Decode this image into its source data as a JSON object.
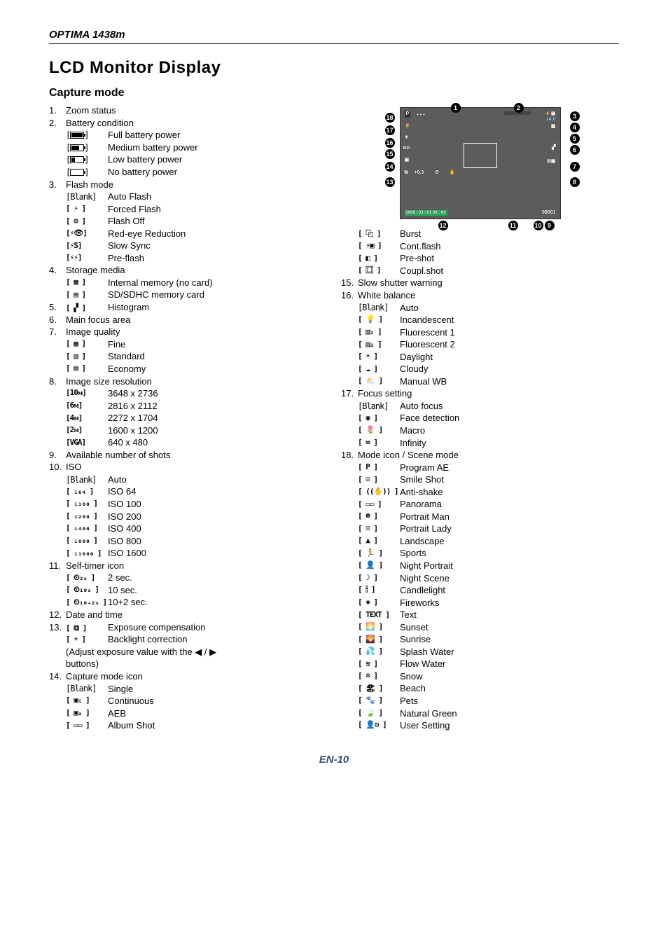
{
  "page": {
    "header": "OPTIMA 1438m",
    "title": "LCD Monitor Display",
    "subtitle": "Capture mode",
    "footer": "EN-10"
  },
  "colors": {
    "text": "#000000",
    "bg": "#ffffff",
    "lcd_bg": "#5c5c5c",
    "callout_bg": "#000000",
    "callout_fg": "#ffffff",
    "footer": "#3a4a7a"
  },
  "lcd_overlay": {
    "zoom_bar": "x4.0",
    "date": "2008 / 03 / 01  00 : 00",
    "counter": "00001",
    "ev": "+0.3",
    "iso": "800",
    "mode": "P"
  },
  "callouts": [
    "1",
    "2",
    "3",
    "4",
    "5",
    "6",
    "7",
    "8",
    "9",
    "10",
    "11",
    "12",
    "13",
    "14",
    "15",
    "16",
    "17",
    "18"
  ],
  "left": [
    {
      "n": "1.",
      "label": "Zoom status"
    },
    {
      "n": "2.",
      "label": "Battery condition",
      "subs": [
        {
          "icon": "batt-full",
          "text": "Full battery power"
        },
        {
          "icon": "batt-med",
          "text": "Medium battery power"
        },
        {
          "icon": "batt-low",
          "text": "Low battery power"
        },
        {
          "icon": "batt-none",
          "text": "No battery power"
        }
      ]
    },
    {
      "n": "3.",
      "label": "Flash  mode",
      "subs": [
        {
          "icon": "[Blank]",
          "plain": true,
          "text": "Auto Flash"
        },
        {
          "icon": "[ ⚡ ]",
          "text": "Forced Flash"
        },
        {
          "icon": "[ ⊘ ]",
          "text": "Flash Off"
        },
        {
          "icon": "[⚡👁]",
          "text": "Red-eye Reduction"
        },
        {
          "icon": "[⚡S]",
          "text": "Slow Sync"
        },
        {
          "icon": "[⚡⚡]",
          "text": "Pre-flash"
        }
      ]
    },
    {
      "n": "4.",
      "label": "Storage media",
      "subs": [
        {
          "icon": "[ ▦ ]",
          "text": "Internal memory (no card)"
        },
        {
          "icon": "[ ▤ ]",
          "text": "SD/SDHC memory card"
        }
      ]
    },
    {
      "n": "5.",
      "label_icon": "[ ▞ ]",
      "label": "Histogram"
    },
    {
      "n": "6.",
      "label": "Main focus area"
    },
    {
      "n": "7.",
      "label": "Image quality",
      "subs": [
        {
          "icon": "[ ▦ ]",
          "text": "Fine"
        },
        {
          "icon": "[ ▥ ]",
          "text": "Standard"
        },
        {
          "icon": "[ ▤ ]",
          "text": "Economy"
        }
      ]
    },
    {
      "n": "8.",
      "label": "Image size resolution",
      "subs": [
        {
          "icon": "[10ᴍ]",
          "text": "3648 x 2736"
        },
        {
          "icon": "[6ᴍ]",
          "text": "2816 x 2112"
        },
        {
          "icon": "[4ᴍ]",
          "text": "2272 x 1704"
        },
        {
          "icon": "[2ᴍ]",
          "text": "1600 x 1200"
        },
        {
          "icon": "[VGA]",
          "text": "640 x 480",
          "bold": true
        }
      ]
    },
    {
      "n": "9.",
      "label": "Available number of shots"
    },
    {
      "n": "10.",
      "label": "ISO",
      "subs": [
        {
          "icon": "[Blank]",
          "plain": true,
          "text": "Auto"
        },
        {
          "icon": "[ ᵢ₆₄ ]",
          "text": "ISO  64"
        },
        {
          "icon": "[ ᵢ₁₀₀ ]",
          "text": "ISO 100"
        },
        {
          "icon": "[ ᵢ₂₀₀ ]",
          "text": "ISO 200"
        },
        {
          "icon": "[ ᵢ₄₀₀ ]",
          "text": "ISO 400"
        },
        {
          "icon": "[ ᵢ₈₀₀ ]",
          "text": "ISO 800"
        },
        {
          "icon": "[ ᵢ₁₆₀₀ ]",
          "text": "ISO 1600"
        }
      ]
    },
    {
      "n": "11.",
      "label": "Self-timer icon",
      "subs": [
        {
          "icon": "[ ⏲₂ₛ ]",
          "text": "2 sec."
        },
        {
          "icon": "[ ⏲₁₀ₛ ]",
          "text": "10 sec."
        },
        {
          "icon": "[ ⏲₁₀₊₂ₛ ]",
          "text": "10+2 sec."
        }
      ]
    },
    {
      "n": "12.",
      "label": "Date and time"
    },
    {
      "n": "13.",
      "label_icon": "[ ⧉ ]",
      "label": "Exposure compensation",
      "subs": [
        {
          "icon": "[ ☀ ]",
          "text": "Backlight correction"
        }
      ],
      "note": "(Adjust exposure value with the    ◀ / ▶\nbuttons)"
    },
    {
      "n": "14.",
      "label": "Capture mode icon",
      "subs": [
        {
          "icon": "[Blank]",
          "plain": true,
          "text": "Single"
        },
        {
          "icon": "[ ▣ᵢ ]",
          "text": "Continuous"
        },
        {
          "icon": "[ ▣ₐ ]",
          "text": "AEB"
        },
        {
          "icon": "[ ▭▭ ]",
          "text": "Album Shot"
        }
      ]
    }
  ],
  "right_cont": [
    {
      "icon": "[ ⿻ ]",
      "text": "Burst"
    },
    {
      "icon": "[ ⚡▣ ]",
      "text": "Cont.flash"
    },
    {
      "icon": "[ ◧ ]",
      "text": "Pre-shot"
    },
    {
      "icon": "[ ⿴ ]",
      "text": "Coupl.shot"
    }
  ],
  "right": [
    {
      "n": "15.",
      "label": "Slow shutter warning"
    },
    {
      "n": "16.",
      "label": "White balance",
      "subs": [
        {
          "icon": "[Blank]",
          "plain": true,
          "text": "Auto"
        },
        {
          "icon": "[ 💡 ]",
          "text": "Incandescent"
        },
        {
          "icon": "[ ▥₁ ]",
          "text": "Fluorescent 1"
        },
        {
          "icon": "[ ▥₂ ]",
          "text": "Fluorescent 2"
        },
        {
          "icon": "[ ☀ ]",
          "text": "Daylight"
        },
        {
          "icon": "[ ☁ ]",
          "text": "Cloudy"
        },
        {
          "icon": "[ ⛅ ]",
          "text": "Manual WB"
        }
      ]
    },
    {
      "n": "17.",
      "label": "Focus setting",
      "subs": [
        {
          "icon": "[Blank]",
          "plain": true,
          "text": "Auto focus"
        },
        {
          "icon": "[ ◉ ]",
          "text": "Face detection"
        },
        {
          "icon": "[ 🌷 ]",
          "text": "Macro"
        },
        {
          "icon": "[ ∞ ]",
          "text": "Infinity"
        }
      ]
    },
    {
      "n": "18.",
      "label": "Mode icon / Scene  mode",
      "subs": [
        {
          "icon": "[ P ]",
          "text": "Program AE",
          "bold": true
        },
        {
          "icon": "[ ☺ ]",
          "text": "Smile Shot"
        },
        {
          "icon": "[ ((✋)) ]",
          "text": "Anti-shake"
        },
        {
          "icon": "[ ▭▭ ]",
          "text": "Panorama"
        },
        {
          "icon": "[ ☻ ]",
          "text": "Portrait Man"
        },
        {
          "icon": "[ ☺ ]",
          "text": "Portrait Lady"
        },
        {
          "icon": "[ ▲ ]",
          "text": "Landscape"
        },
        {
          "icon": "[ 🏃 ]",
          "text": "Sports"
        },
        {
          "icon": "[ 👤 ]",
          "text": "Night Portrait"
        },
        {
          "icon": "[ ☽ ]",
          "text": "Night Scene"
        },
        {
          "icon": "[ 🕯 ]",
          "text": "Candlelight"
        },
        {
          "icon": "[ ✺ ]",
          "text": "Fireworks"
        },
        {
          "icon": "[ TEXT ]",
          "text": "Text"
        },
        {
          "icon": "[ 🌅 ]",
          "text": "Sunset"
        },
        {
          "icon": "[ 🌄 ]",
          "text": "Sunrise"
        },
        {
          "icon": "[ 💦 ]",
          "text": "Splash Water"
        },
        {
          "icon": "[ ≋ ]",
          "text": "Flow Water"
        },
        {
          "icon": "[ ❄ ]",
          "text": "Snow"
        },
        {
          "icon": "[ 🏖 ]",
          "text": "Beach"
        },
        {
          "icon": "[ 🐾 ]",
          "text": "Pets"
        },
        {
          "icon": "[ 🍃 ]",
          "text": "Natural Green"
        },
        {
          "icon": "[ 👤⚙ ]",
          "text": "User Setting"
        }
      ]
    }
  ]
}
